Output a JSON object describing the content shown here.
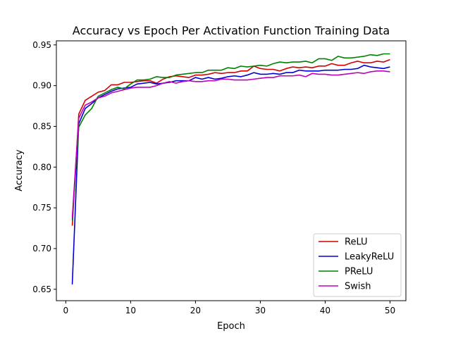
{
  "chart_data": {
    "type": "line",
    "title": "Accuracy vs Epoch Per Activation Function Training Data",
    "xlabel": "Epoch",
    "ylabel": "Accuracy",
    "xlim": [
      -1.45,
      52.45
    ],
    "ylim": [
      0.636,
      0.955
    ],
    "xticks": [
      0,
      10,
      20,
      30,
      40,
      50
    ],
    "yticks": [
      0.65,
      0.7,
      0.75,
      0.8,
      0.85,
      0.9,
      0.95
    ],
    "xtick_labels": [
      "0",
      "10",
      "20",
      "30",
      "40",
      "50"
    ],
    "ytick_labels": [
      "0.65",
      "0.70",
      "0.75",
      "0.80",
      "0.85",
      "0.90",
      "0.95"
    ],
    "grid": false,
    "legend_position": "lower-right",
    "x": [
      1,
      2,
      3,
      4,
      5,
      6,
      7,
      8,
      9,
      10,
      11,
      12,
      13,
      14,
      15,
      16,
      17,
      18,
      19,
      20,
      21,
      22,
      23,
      24,
      25,
      26,
      27,
      28,
      29,
      30,
      31,
      32,
      33,
      34,
      35,
      36,
      37,
      38,
      39,
      40,
      41,
      42,
      43,
      44,
      45,
      46,
      47,
      48,
      49,
      50
    ],
    "series": [
      {
        "name": "ReLU",
        "color": "#d40000",
        "values": [
          0.728,
          0.865,
          0.882,
          0.887,
          0.892,
          0.894,
          0.901,
          0.901,
          0.904,
          0.904,
          0.905,
          0.906,
          0.906,
          0.903,
          0.908,
          0.911,
          0.912,
          0.911,
          0.91,
          0.913,
          0.913,
          0.914,
          0.916,
          0.915,
          0.916,
          0.916,
          0.918,
          0.918,
          0.924,
          0.921,
          0.92,
          0.92,
          0.918,
          0.921,
          0.923,
          0.922,
          0.923,
          0.922,
          0.924,
          0.924,
          0.927,
          0.925,
          0.925,
          0.928,
          0.93,
          0.928,
          0.928,
          0.93,
          0.929,
          0.932
        ]
      },
      {
        "name": "LeakyReLU",
        "color": "#0000d4",
        "values": [
          0.656,
          0.853,
          0.872,
          0.878,
          0.885,
          0.889,
          0.893,
          0.896,
          0.897,
          0.898,
          0.902,
          0.903,
          0.904,
          0.902,
          0.903,
          0.904,
          0.906,
          0.906,
          0.906,
          0.91,
          0.908,
          0.91,
          0.908,
          0.909,
          0.911,
          0.912,
          0.911,
          0.913,
          0.916,
          0.914,
          0.914,
          0.915,
          0.914,
          0.916,
          0.916,
          0.919,
          0.918,
          0.918,
          0.918,
          0.919,
          0.919,
          0.919,
          0.92,
          0.92,
          0.921,
          0.925,
          0.923,
          0.922,
          0.921,
          0.923
        ]
      },
      {
        "name": "PReLU",
        "color": "#008000",
        "values": [
          0.735,
          0.849,
          0.864,
          0.872,
          0.887,
          0.891,
          0.895,
          0.898,
          0.896,
          0.902,
          0.907,
          0.907,
          0.908,
          0.911,
          0.91,
          0.91,
          0.913,
          0.914,
          0.915,
          0.916,
          0.916,
          0.919,
          0.919,
          0.919,
          0.922,
          0.921,
          0.924,
          0.923,
          0.924,
          0.925,
          0.924,
          0.927,
          0.929,
          0.928,
          0.929,
          0.929,
          0.93,
          0.928,
          0.933,
          0.933,
          0.931,
          0.936,
          0.934,
          0.934,
          0.935,
          0.936,
          0.938,
          0.937,
          0.939,
          0.939
        ]
      },
      {
        "name": "Swish",
        "color": "#bf00bf",
        "values": [
          0.738,
          0.86,
          0.876,
          0.88,
          0.885,
          0.887,
          0.891,
          0.893,
          0.895,
          0.897,
          0.898,
          0.898,
          0.898,
          0.9,
          0.903,
          0.905,
          0.903,
          0.905,
          0.906,
          0.905,
          0.905,
          0.906,
          0.906,
          0.908,
          0.908,
          0.907,
          0.907,
          0.907,
          0.908,
          0.909,
          0.91,
          0.91,
          0.912,
          0.912,
          0.912,
          0.913,
          0.911,
          0.915,
          0.914,
          0.914,
          0.913,
          0.913,
          0.914,
          0.915,
          0.916,
          0.915,
          0.917,
          0.918,
          0.918,
          0.917
        ]
      }
    ]
  }
}
